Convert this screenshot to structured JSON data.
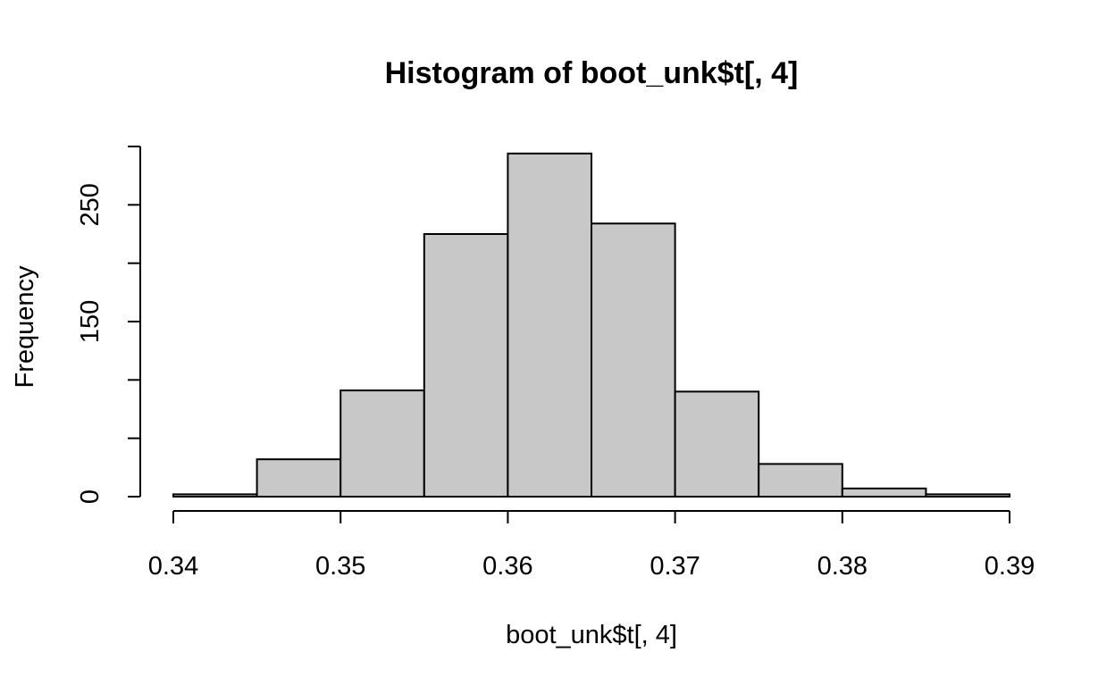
{
  "chart_data": {
    "type": "bar",
    "title": "Histogram of boot_unk$t[, 4]",
    "xlabel": "boot_unk$t[, 4]",
    "ylabel": "Frequency",
    "bin_edges": [
      0.34,
      0.345,
      0.35,
      0.355,
      0.36,
      0.365,
      0.37,
      0.375,
      0.38,
      0.385,
      0.39
    ],
    "values": [
      2,
      32,
      91,
      225,
      294,
      234,
      90,
      28,
      7,
      2
    ],
    "xlim": [
      0.34,
      0.39
    ],
    "ylim": [
      0,
      300
    ],
    "x_ticks": [
      0.34,
      0.35,
      0.36,
      0.37,
      0.38,
      0.39
    ],
    "x_tick_labels": [
      "0.34",
      "0.35",
      "0.36",
      "0.37",
      "0.38",
      "0.39"
    ],
    "y_ticks": [
      0,
      50,
      100,
      150,
      200,
      250,
      300
    ],
    "y_tick_labels": [
      "0",
      "",
      "",
      "150",
      "",
      "250",
      ""
    ],
    "bar_color": "#C8C8C8",
    "grid": false,
    "legend": false
  }
}
